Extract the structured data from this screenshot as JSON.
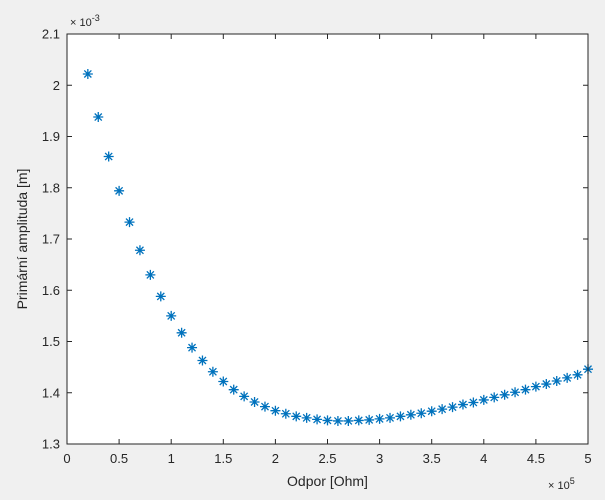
{
  "chart_data": {
    "type": "scatter",
    "xlabel": "Odpor [Ohm]",
    "ylabel": "Primární amplituda [m]",
    "xlim": [
      0,
      500000
    ],
    "ylim": [
      0.0013,
      0.0021
    ],
    "x_ticks": [
      "0",
      "0.5",
      "1",
      "1.5",
      "2",
      "2.5",
      "3",
      "3.5",
      "4",
      "4.5",
      "5"
    ],
    "y_ticks": [
      "1.3",
      "1.4",
      "1.5",
      "1.6",
      "1.7",
      "1.8",
      "1.9",
      "2",
      "2.1"
    ],
    "x_exponent": {
      "base": "× 10",
      "power": "5"
    },
    "y_exponent": {
      "base": "× 10",
      "power": "-3"
    },
    "grid": false,
    "marker": "*",
    "marker_color": "#0072bd",
    "series": [
      {
        "x": [
          20000,
          30000,
          40000,
          50000,
          60000,
          70000,
          80000,
          90000,
          100000,
          110000,
          120000,
          130000,
          140000,
          150000,
          160000,
          170000,
          180000,
          190000,
          200000,
          210000,
          220000,
          230000,
          240000,
          250000,
          260000,
          270000,
          280000,
          290000,
          300000,
          310000,
          320000,
          330000,
          340000,
          350000,
          360000,
          370000,
          380000,
          390000,
          400000,
          410000,
          420000,
          430000,
          440000,
          450000,
          460000,
          470000,
          480000,
          490000,
          500000
        ],
        "y": [
          0.002022,
          0.001938,
          0.001861,
          0.001794,
          0.001733,
          0.001678,
          0.00163,
          0.001588,
          0.00155,
          0.001517,
          0.001488,
          0.001463,
          0.001441,
          0.001422,
          0.001406,
          0.001393,
          0.001382,
          0.001373,
          0.001365,
          0.001359,
          0.001354,
          0.001351,
          0.001348,
          0.001346,
          0.001345,
          0.001345,
          0.001346,
          0.001347,
          0.001349,
          0.001351,
          0.001354,
          0.001357,
          0.00136,
          0.001364,
          0.001368,
          0.001372,
          0.001377,
          0.001381,
          0.001386,
          0.001391,
          0.001396,
          0.001401,
          0.001406,
          0.001412,
          0.001417,
          0.001423,
          0.001429,
          0.001435,
          0.001446
        ]
      }
    ]
  }
}
